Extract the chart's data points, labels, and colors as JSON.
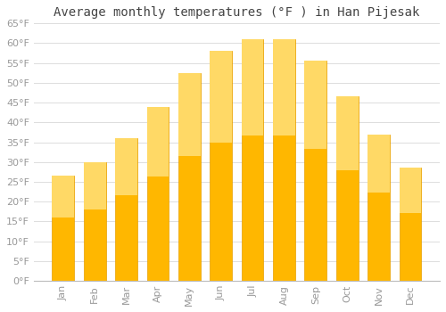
{
  "title": "Average monthly temperatures (°F ) in Han Pijesak",
  "months": [
    "Jan",
    "Feb",
    "Mar",
    "Apr",
    "May",
    "Jun",
    "Jul",
    "Aug",
    "Sep",
    "Oct",
    "Nov",
    "Dec"
  ],
  "values": [
    26.5,
    30.0,
    36.0,
    44.0,
    52.5,
    58.0,
    61.0,
    61.0,
    55.5,
    46.5,
    37.0,
    28.5
  ],
  "bar_color_bottom": "#FFB700",
  "bar_color_top": "#FFD966",
  "bar_edge_color": "#E8A000",
  "background_color": "#FFFFFF",
  "grid_color": "#DDDDDD",
  "tick_label_color": "#999999",
  "title_color": "#444444",
  "ylim": [
    0,
    65
  ],
  "yticks": [
    0,
    5,
    10,
    15,
    20,
    25,
    30,
    35,
    40,
    45,
    50,
    55,
    60,
    65
  ],
  "title_fontsize": 10,
  "tick_fontsize": 8,
  "bar_width": 0.7
}
